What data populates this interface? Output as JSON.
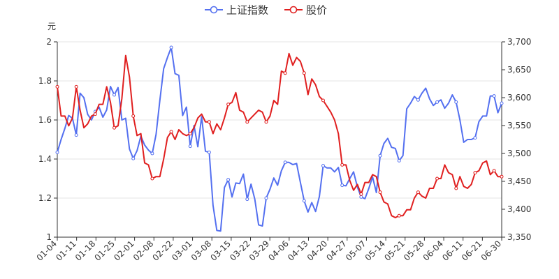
{
  "chart_data": {
    "type": "line",
    "y_left_unit": "元",
    "x_tick_labels": [
      "01-04",
      "01-11",
      "01-18",
      "01-25",
      "02-01",
      "02-08",
      "02-22",
      "03-01",
      "03-08",
      "03-15",
      "03-22",
      "03-29",
      "04-06",
      "04-13",
      "04-20",
      "04-27",
      "05-07",
      "05-14",
      "05-21",
      "05-28",
      "06-04",
      "06-11",
      "06-21",
      "06-30"
    ],
    "y_left": {
      "min": 1.0,
      "max": 2.0,
      "ticks": [
        "1",
        "1.2",
        "1.4",
        "1.6",
        "1.8",
        "2"
      ]
    },
    "y_right": {
      "min": 3350,
      "max": 3700,
      "ticks": [
        "3,350",
        "3,400",
        "3,450",
        "3,500",
        "3,550",
        "3,600",
        "3,650",
        "3,700"
      ]
    },
    "grid": "horizontal",
    "legend_position": "top-center",
    "series": [
      {
        "name": "上证指数",
        "axis": "right",
        "color": "#5470f0",
        "values": [
          3502,
          3525,
          3545,
          3568,
          3563,
          3533,
          3608,
          3600,
          3570,
          3560,
          3575,
          3583,
          3565,
          3578,
          3620,
          3605,
          3618,
          3560,
          3563,
          3508,
          3491,
          3505,
          3531,
          3515,
          3506,
          3500,
          3534,
          3595,
          3652,
          3672,
          3690,
          3643,
          3640,
          3568,
          3583,
          3513,
          3550,
          3512,
          3566,
          3504,
          3502,
          3407,
          3362,
          3361,
          3439,
          3453,
          3422,
          3447,
          3446,
          3463,
          3418,
          3445,
          3418,
          3372,
          3370,
          3420,
          3436,
          3456,
          3443,
          3469,
          3484,
          3484,
          3480,
          3482,
          3448,
          3415,
          3395,
          3412,
          3396,
          3423,
          3478,
          3474,
          3474,
          3467,
          3475,
          3443,
          3442,
          3455,
          3467,
          3440,
          3422,
          3419,
          3437,
          3458,
          3430,
          3496,
          3518,
          3527,
          3511,
          3509,
          3487,
          3496,
          3580,
          3590,
          3602,
          3596,
          3608,
          3617,
          3598,
          3586,
          3592,
          3596,
          3581,
          3590,
          3605,
          3592,
          3560,
          3520,
          3525,
          3525,
          3528,
          3557,
          3567,
          3567,
          3603,
          3603,
          3573,
          3590
        ]
      },
      {
        "name": "股价",
        "axis": "left",
        "color": "#e01f1f",
        "values": [
          1.77,
          1.62,
          1.62,
          1.57,
          1.61,
          1.77,
          1.65,
          1.56,
          1.58,
          1.62,
          1.63,
          1.68,
          1.68,
          1.77,
          1.69,
          1.56,
          1.57,
          1.71,
          1.93,
          1.82,
          1.62,
          1.52,
          1.53,
          1.38,
          1.37,
          1.3,
          1.31,
          1.31,
          1.4,
          1.51,
          1.54,
          1.5,
          1.55,
          1.53,
          1.52,
          1.53,
          1.56,
          1.61,
          1.63,
          1.59,
          1.59,
          1.53,
          1.58,
          1.55,
          1.61,
          1.68,
          1.69,
          1.74,
          1.65,
          1.64,
          1.59,
          1.61,
          1.63,
          1.65,
          1.64,
          1.59,
          1.62,
          1.7,
          1.68,
          1.85,
          1.84,
          1.94,
          1.88,
          1.92,
          1.9,
          1.84,
          1.73,
          1.81,
          1.78,
          1.72,
          1.7,
          1.67,
          1.64,
          1.6,
          1.53,
          1.37,
          1.37,
          1.29,
          1.24,
          1.27,
          1.22,
          1.28,
          1.28,
          1.32,
          1.31,
          1.23,
          1.18,
          1.17,
          1.11,
          1.1,
          1.11,
          1.11,
          1.14,
          1.14,
          1.2,
          1.23,
          1.21,
          1.2,
          1.25,
          1.25,
          1.3,
          1.3,
          1.37,
          1.33,
          1.32,
          1.25,
          1.31,
          1.26,
          1.25,
          1.27,
          1.33,
          1.34,
          1.38,
          1.39,
          1.32,
          1.34,
          1.31,
          1.31
        ]
      }
    ]
  }
}
